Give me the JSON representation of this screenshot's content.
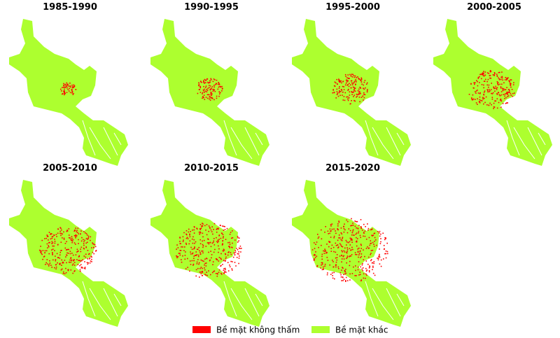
{
  "panels": [
    {
      "title": "1985-1990"
    },
    {
      "title": "1990-1995"
    },
    {
      "title": "1995-2000"
    },
    {
      "title": "2000-2005"
    },
    {
      "title": "2005-2010"
    },
    {
      "title": "2010-2015"
    },
    {
      "title": "2015-2020"
    }
  ],
  "legend": [
    {
      "label": "Bề mặt không thấm",
      "color": "#ff0000"
    },
    {
      "label": "Bề mặt khác",
      "color": "#adff2f"
    }
  ]
}
